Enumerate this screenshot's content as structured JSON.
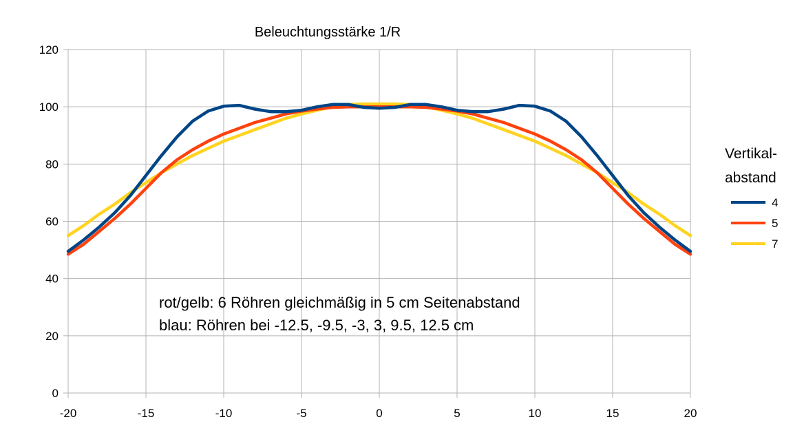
{
  "chart_data": {
    "type": "line",
    "title": "Beleuchtungsstärke 1/R",
    "xlabel": "",
    "ylabel": "",
    "xlim": [
      -20,
      20
    ],
    "ylim": [
      0,
      120
    ],
    "xticks": [
      "-20",
      "-15",
      "-10",
      "-5",
      "0",
      "5",
      "10",
      "15",
      "20"
    ],
    "yticks": [
      "0",
      "20",
      "40",
      "60",
      "80",
      "100",
      "120"
    ],
    "grid": true,
    "legend": {
      "title_lines": [
        "Vertikal-",
        "abstand"
      ],
      "position": "right"
    },
    "annotations": [
      "rot/gelb: 6 Röhren gleichmäßig in 5 cm Seitenabstand",
      "blau: Röhren bei -12.5, -9.5, -3, 3, 9.5, 12.5 cm"
    ],
    "x": [
      -20,
      -19,
      -18,
      -17,
      -16,
      -15,
      -14,
      -13,
      -12,
      -11,
      -10,
      -9,
      -8,
      -7,
      -6,
      -5,
      -4,
      -3,
      -2,
      -1,
      0,
      1,
      2,
      3,
      4,
      5,
      6,
      7,
      8,
      9,
      10,
      11,
      12,
      13,
      14,
      15,
      16,
      17,
      18,
      19,
      20
    ],
    "series": [
      {
        "name": "4",
        "color": "#004586",
        "values": [
          49.5,
          53.5,
          58,
          63,
          69,
          76,
          83,
          89.5,
          95,
          98.5,
          100.2,
          100.5,
          99.2,
          98.3,
          98.3,
          98.8,
          100,
          100.8,
          100.8,
          99.8,
          99.5,
          99.8,
          100.8,
          100.8,
          100,
          98.8,
          98.3,
          98.3,
          99.2,
          100.5,
          100.2,
          98.5,
          95,
          89.5,
          83,
          76,
          69,
          63,
          58,
          53.5,
          49.5
        ]
      },
      {
        "name": "5",
        "color": "#ff420e",
        "values": [
          48.5,
          52,
          56.5,
          61,
          66,
          71.5,
          77,
          81.5,
          85,
          88,
          90.5,
          92.5,
          94.5,
          96,
          97.5,
          98.5,
          99.2,
          99.8,
          100,
          100,
          100,
          100,
          100,
          99.8,
          99.2,
          98.5,
          97.5,
          96,
          94.5,
          92.5,
          90.5,
          88,
          85,
          81.5,
          77,
          71.5,
          66,
          61,
          56.5,
          52,
          48.5
        ]
      },
      {
        "name": "7",
        "color": "#ffd320",
        "values": [
          55,
          58.5,
          62.5,
          66,
          70,
          73.5,
          77,
          80,
          83,
          85.5,
          88,
          90,
          92,
          94,
          96,
          97.5,
          98.8,
          100,
          100.8,
          101,
          101,
          101,
          100.8,
          100,
          98.8,
          97.5,
          96,
          94,
          92,
          90,
          88,
          85.5,
          83,
          80,
          77,
          73.5,
          70,
          66,
          62.5,
          58.5,
          55
        ]
      }
    ]
  }
}
